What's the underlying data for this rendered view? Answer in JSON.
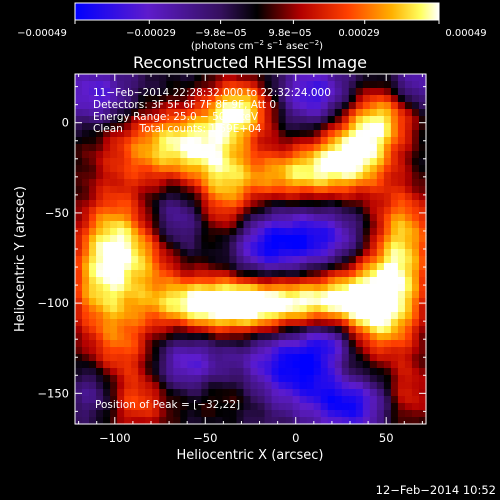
{
  "chart_data": {
    "type": "heatmap",
    "title": "Reconstructed RHESSI Image",
    "xlabel": "Heliocentric X (arcsec)",
    "ylabel": "Heliocentric Y (arcsec)",
    "xlim": [
      -122,
      72
    ],
    "ylim": [
      -167,
      27
    ],
    "xticks": [
      {
        "value": -100,
        "label": "−100"
      },
      {
        "value": -50,
        "label": "−50"
      },
      {
        "value": 0,
        "label": "0"
      },
      {
        "value": 50,
        "label": "50"
      }
    ],
    "yticks": [
      {
        "value": 0,
        "label": "0"
      },
      {
        "value": -50,
        "label": "−50"
      },
      {
        "value": -100,
        "label": "−100"
      },
      {
        "value": -150,
        "label": "−150"
      }
    ],
    "colorbar": {
      "range": [
        -0.00049,
        0.00049
      ],
      "colormap": "blue-purple-black-red-orange-yellow-white",
      "unit_prefix": "(photons cm",
      "unit_sup1": "−2",
      "unit_mid": " s",
      "unit_sup2": "−1",
      "unit_mid2": " asec",
      "unit_sup3": "−2",
      "unit_suffix": ")",
      "ticks": [
        {
          "value": -0.00049,
          "label": "−0.00049"
        },
        {
          "value": -0.00029,
          "label": "−0.00029"
        },
        {
          "value": -9.8e-05,
          "label": "−9.8e−05"
        },
        {
          "value": 9.8e-05,
          "label": "9.8e−05"
        },
        {
          "value": 0.00029,
          "label": "0.00029"
        },
        {
          "value": 0.00049,
          "label": "0.00049"
        }
      ]
    },
    "annotations": {
      "time_range": "11−Feb−2014 22:28:32.000 to 22:32:24.000",
      "detectors": "Detectors: 3F 5F 6F 7F 8F 9F, Att 0",
      "energy": "Energy Range: 25.0 − 50.0 keV",
      "clean": "Clean     Total counts: 1.59E+04",
      "peak": "Position of Peak = [−32,22]"
    },
    "peak_position": [
      -32,
      22
    ],
    "blobs": [
      {
        "x": -85,
        "y": -15,
        "sx": 22,
        "sy": 16,
        "a": 0.55
      },
      {
        "x": -58,
        "y": -12,
        "sx": 18,
        "sy": 14,
        "a": 0.75
      },
      {
        "x": -30,
        "y": 8,
        "sx": 14,
        "sy": 12,
        "a": 1.0
      },
      {
        "x": -40,
        "y": -40,
        "sx": 12,
        "sy": 22,
        "a": 0.7
      },
      {
        "x": -10,
        "y": -30,
        "sx": 18,
        "sy": 10,
        "a": 0.6
      },
      {
        "x": 15,
        "y": -25,
        "sx": 18,
        "sy": 12,
        "a": 0.65
      },
      {
        "x": 35,
        "y": -15,
        "sx": 15,
        "sy": 15,
        "a": 0.9
      },
      {
        "x": 48,
        "y": 5,
        "sx": 14,
        "sy": 12,
        "a": 0.75
      },
      {
        "x": -100,
        "y": -60,
        "sx": 14,
        "sy": 18,
        "a": 0.7
      },
      {
        "x": -108,
        "y": -90,
        "sx": 14,
        "sy": 20,
        "a": 0.8
      },
      {
        "x": -80,
        "y": -75,
        "sx": 14,
        "sy": 14,
        "a": 0.55
      },
      {
        "x": -60,
        "y": -100,
        "sx": 22,
        "sy": 10,
        "a": 0.75
      },
      {
        "x": -30,
        "y": -102,
        "sx": 22,
        "sy": 12,
        "a": 0.9
      },
      {
        "x": 0,
        "y": -100,
        "sx": 22,
        "sy": 10,
        "a": 0.7
      },
      {
        "x": 30,
        "y": -95,
        "sx": 18,
        "sy": 14,
        "a": 0.7
      },
      {
        "x": 55,
        "y": -85,
        "sx": 14,
        "sy": 20,
        "a": 0.85
      },
      {
        "x": 60,
        "y": -55,
        "sx": 12,
        "sy": 16,
        "a": 0.6
      },
      {
        "x": 45,
        "y": -115,
        "sx": 16,
        "sy": 14,
        "a": 0.6
      },
      {
        "x": -95,
        "y": -125,
        "sx": 14,
        "sy": 14,
        "a": 0.55
      },
      {
        "x": -88,
        "y": -155,
        "sx": 14,
        "sy": 12,
        "a": 0.6
      },
      {
        "x": -40,
        "y": -150,
        "sx": 18,
        "sy": 10,
        "a": 0.35
      },
      {
        "x": 30,
        "y": -140,
        "sx": 10,
        "sy": 10,
        "a": 0.4
      },
      {
        "x": 62,
        "y": -150,
        "sx": 10,
        "sy": 14,
        "a": 0.5
      },
      {
        "x": 10,
        "y": -65,
        "sx": 20,
        "sy": 12,
        "a": -0.8
      },
      {
        "x": -20,
        "y": -70,
        "sx": 14,
        "sy": 12,
        "a": -0.6
      },
      {
        "x": -65,
        "y": -55,
        "sx": 12,
        "sy": 14,
        "a": -0.5
      },
      {
        "x": 0,
        "y": -135,
        "sx": 22,
        "sy": 16,
        "a": -0.9
      },
      {
        "x": 30,
        "y": -155,
        "sx": 14,
        "sy": 12,
        "a": -0.8
      },
      {
        "x": -60,
        "y": -135,
        "sx": 14,
        "sy": 12,
        "a": -0.6
      },
      {
        "x": -110,
        "y": 15,
        "sx": 14,
        "sy": 12,
        "a": -0.6
      },
      {
        "x": 10,
        "y": 15,
        "sx": 16,
        "sy": 12,
        "a": -0.7
      },
      {
        "x": -110,
        "y": -150,
        "sx": 10,
        "sy": 10,
        "a": -0.4
      },
      {
        "x": 65,
        "y": 20,
        "sx": 10,
        "sy": 10,
        "a": -0.5
      },
      {
        "x": 20,
        "y": -120,
        "sx": 10,
        "sy": 8,
        "a": -0.5
      }
    ]
  },
  "footer": {
    "date": "12−Feb−2014 10:52"
  }
}
